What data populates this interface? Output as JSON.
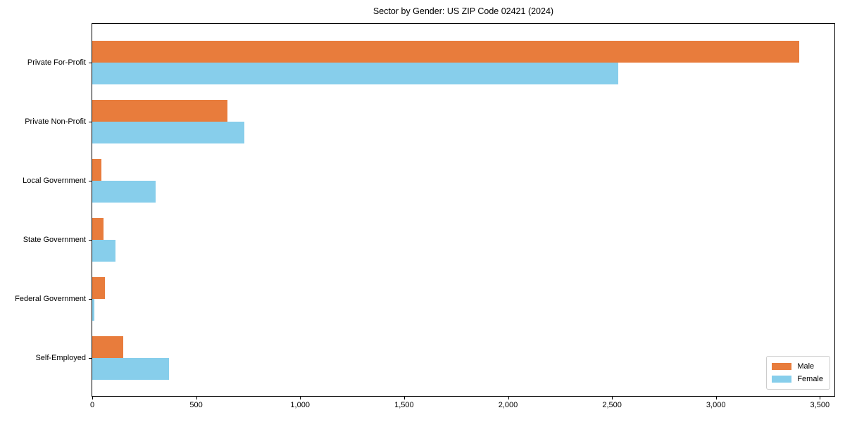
{
  "title": "Sector by Gender: US ZIP Code 02421 (2024)",
  "chart_data": {
    "type": "bar",
    "orientation": "horizontal",
    "title": "Sector by Gender: US ZIP Code 02421 (2024)",
    "xlabel": "",
    "ylabel": "",
    "categories": [
      "Private For-Profit",
      "Private Non-Profit",
      "Local Government",
      "State Government",
      "Federal Government",
      "Self-Employed"
    ],
    "series": [
      {
        "name": "Male",
        "color": "#E87C3C",
        "values": [
          3400,
          650,
          45,
          55,
          60,
          150
        ]
      },
      {
        "name": "Female",
        "color": "#87CEEB",
        "values": [
          2530,
          730,
          305,
          110,
          10,
          370
        ]
      }
    ],
    "xlim": [
      0,
      3570
    ],
    "x_ticks": [
      0,
      500,
      1000,
      1500,
      2000,
      2500,
      3000,
      3500
    ],
    "x_tick_labels": [
      "0",
      "500",
      "1,000",
      "1,500",
      "2,000",
      "2,500",
      "3,000",
      "3,500"
    ],
    "grid": false,
    "legend_position": "lower right"
  },
  "legend": {
    "items": [
      {
        "label": "Male",
        "color": "#E87C3C"
      },
      {
        "label": "Female",
        "color": "#87CEEB"
      }
    ]
  }
}
